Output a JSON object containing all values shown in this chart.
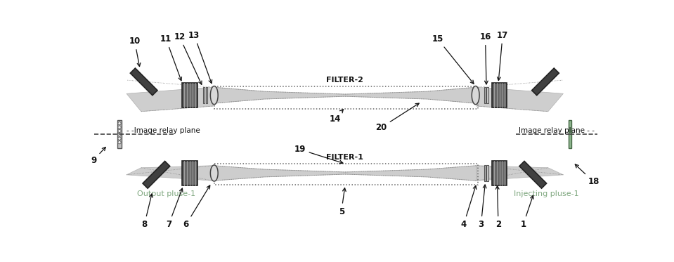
{
  "bg_color": "#ffffff",
  "beam_fill": "#c8c8c8",
  "beam_edge": "#999999",
  "mirror_color": "#404040",
  "amp_fill": "#686868",
  "amp_edge": "#222222",
  "lens_fill": "#d8d8d8",
  "lens_edge": "#444444",
  "filter_edge": "#666666",
  "relay_fill": "#aaaaaa",
  "relay_edge": "#444444",
  "label_color": "#111111",
  "green_color": "#80a880",
  "dash_color": "#444444",
  "figsize": [
    9.59,
    3.73
  ],
  "dpi": 100,
  "title_filter2": "FILTER-2",
  "title_filter1": "FILTER-1",
  "text_relay_left": "- -Image relay plane",
  "text_relay_right": "Image relay plane - -",
  "text_output": "Output pluse-1",
  "text_inject": "Injecting pluse-1"
}
